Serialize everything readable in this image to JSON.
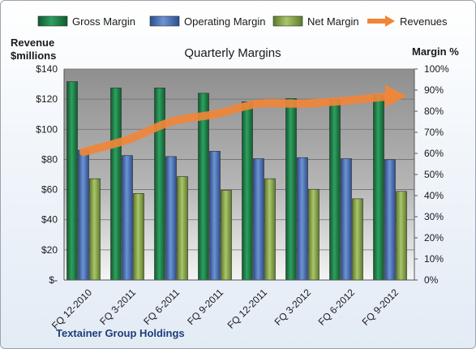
{
  "chart_data": {
    "type": "bar",
    "title": "Quarterly Margins",
    "company": "Textainer Group Holdings",
    "left_axis_label": [
      "Revenue",
      "$millions"
    ],
    "right_axis_label": "Margin %",
    "categories": [
      "FQ 12-2010",
      "FQ 3-2011",
      "FQ 6-2011",
      "FQ 9-2011",
      "FQ 12-2011",
      "FQ 3-2012",
      "FQ 6-2012",
      "FQ 9-2012"
    ],
    "left_ticks": [
      "$-",
      "$20",
      "$40",
      "$60",
      "$80",
      "$100",
      "$120",
      "$140"
    ],
    "right_ticks": [
      "0%",
      "10%",
      "20%",
      "30%",
      "40%",
      "50%",
      "60%",
      "70%",
      "80%",
      "90%",
      "100%"
    ],
    "left_ylim": [
      0,
      140
    ],
    "right_ylim": [
      0,
      100
    ],
    "legend_position": "top",
    "series": [
      {
        "name": "Gross Margin",
        "axis": "right",
        "color": "#1e7d45",
        "values": [
          94,
          91,
          91,
          88.5,
          84.5,
          86,
          85.5,
          87.5
        ]
      },
      {
        "name": "Operating Margin",
        "axis": "right",
        "color": "#4a72b8",
        "values": [
          61.5,
          59,
          58.5,
          61,
          57.5,
          58,
          57.5,
          57
        ]
      },
      {
        "name": "Net Margin",
        "axis": "right",
        "color": "#8faf4f",
        "values": [
          48,
          41,
          49,
          42.5,
          48,
          43,
          38.5,
          42
        ]
      },
      {
        "name": "Revenues",
        "axis": "left",
        "type": "arrow-line",
        "color": "#f0863a",
        "values": [
          85,
          93,
          105,
          110,
          117,
          117,
          119,
          122
        ]
      }
    ]
  }
}
